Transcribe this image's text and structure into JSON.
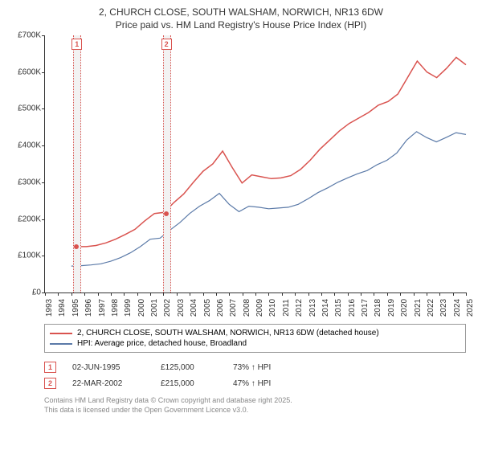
{
  "title_line1": "2, CHURCH CLOSE, SOUTH WALSHAM, NORWICH, NR13 6DW",
  "title_line2": "Price paid vs. HM Land Registry's House Price Index (HPI)",
  "chart": {
    "type": "line",
    "x_start": 1993,
    "x_end": 2025,
    "xtick_step": 1,
    "ylim": [
      0,
      700000
    ],
    "ytick_step": 100000,
    "ytick_labels": [
      "£0",
      "£100K",
      "£200K",
      "£300K",
      "£400K",
      "£500K",
      "£600K",
      "£700K"
    ],
    "xtick_labels": [
      "1993",
      "1994",
      "1995",
      "1996",
      "1997",
      "1998",
      "1999",
      "2000",
      "2001",
      "2002",
      "2003",
      "2004",
      "2005",
      "2006",
      "2007",
      "2008",
      "2009",
      "2010",
      "2011",
      "2012",
      "2013",
      "2014",
      "2015",
      "2016",
      "2017",
      "2018",
      "2019",
      "2020",
      "2021",
      "2022",
      "2023",
      "2024",
      "2025"
    ],
    "background_color": "#ffffff",
    "axis_color": "#333333",
    "series": [
      {
        "name": "property",
        "color": "#d9534f",
        "stroke_width": 1.5,
        "x_start": 1995.4,
        "points": [
          125,
          125,
          128,
          135,
          145,
          158,
          172,
          195,
          215,
          218,
          245,
          268,
          300,
          330,
          350,
          385,
          340,
          298,
          320,
          315,
          310,
          312,
          318,
          335,
          360,
          390,
          415,
          440,
          460,
          475,
          490,
          510,
          520,
          540,
          585,
          630,
          600,
          585,
          610,
          640,
          620
        ]
      },
      {
        "name": "hpi",
        "color": "#5b7aa8",
        "stroke_width": 1.2,
        "x_start": 1995.0,
        "points": [
          72,
          73,
          75,
          78,
          85,
          95,
          108,
          125,
          145,
          148,
          170,
          190,
          215,
          235,
          250,
          270,
          240,
          220,
          235,
          232,
          228,
          230,
          232,
          240,
          255,
          272,
          285,
          300,
          312,
          323,
          332,
          348,
          360,
          380,
          415,
          438,
          422,
          410,
          422,
          435,
          430
        ]
      }
    ],
    "markers": [
      {
        "num": "1",
        "x": 1995.4,
        "y": 125000,
        "color": "#d9534f"
      },
      {
        "num": "2",
        "x": 2002.2,
        "y": 215000,
        "color": "#d9534f"
      }
    ],
    "band_color": "#f2f2f2",
    "band_border": "#d9534f"
  },
  "legend": {
    "items": [
      {
        "color": "#d9534f",
        "label": "2, CHURCH CLOSE, SOUTH WALSHAM, NORWICH, NR13 6DW (detached house)"
      },
      {
        "color": "#5b7aa8",
        "label": "HPI: Average price, detached house, Broadland"
      }
    ]
  },
  "transactions": [
    {
      "num": "1",
      "date": "02-JUN-1995",
      "price": "£125,000",
      "pct": "73% ↑ HPI"
    },
    {
      "num": "2",
      "date": "22-MAR-2002",
      "price": "£215,000",
      "pct": "47% ↑ HPI"
    }
  ],
  "footer_line1": "Contains HM Land Registry data © Crown copyright and database right 2025.",
  "footer_line2": "This data is licensed under the Open Government Licence v3.0."
}
